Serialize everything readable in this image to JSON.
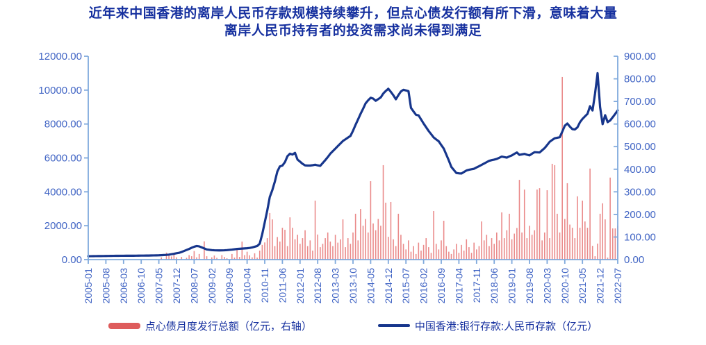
{
  "title": {
    "line1": "近年来中国香港的离岸人民币存款规模持续攀升，但点心债发行额有所下滑，意味着大量",
    "line2": "离岸人民币持有者的投资需求尚未得到满足"
  },
  "colors": {
    "title_text": "#16309F",
    "legend_text": "#16309F",
    "axis_line": "#7FA9DC",
    "axis_label": "#4064C4",
    "bar_fill": "#EA8A8A",
    "line_stroke": "#17368C",
    "legend_bar_swatch": "#DE5C5C",
    "legend_line_swatch": "#17368C"
  },
  "legend": {
    "items": [
      {
        "label": "点心债月度发行总额（亿元，右轴）",
        "swatch": "bar"
      },
      {
        "label": "中国香港:银行存款:人民币存款（亿元）",
        "swatch": "line"
      }
    ]
  },
  "chart_data": {
    "type": "bar+line combo, dual axis",
    "x_start": "2005-01",
    "x_end": "2022-07",
    "x_frequency": "monthly",
    "x_tick_labels": [
      "2005-01",
      "2005-08",
      "2006-03",
      "2006-10",
      "2007-05",
      "2007-12",
      "2008-07",
      "2009-02",
      "2009-09",
      "2010-04",
      "2010-11",
      "2011-06",
      "2012-01",
      "2012-08",
      "2013-03",
      "2013-10",
      "2014-05",
      "2014-12",
      "2015-07",
      "2016-02",
      "2016-09",
      "2017-04",
      "2017-11",
      "2018-06",
      "2019-01",
      "2019-08",
      "2020-03",
      "2020-10",
      "2021-05",
      "2021-12",
      "2022-07"
    ],
    "x_tick_every_n_months": 7,
    "left_axis": {
      "min": 0,
      "max": 12000,
      "step": 2000,
      "tick_labels": [
        "0.00",
        "2000.00",
        "4000.00",
        "6000.00",
        "8000.00",
        "10000.00",
        "12000.00"
      ]
    },
    "right_axis": {
      "min": 0,
      "max": 900,
      "step": 100,
      "tick_labels": [
        "0.00",
        "100.00",
        "200.00",
        "300.00",
        "400.00",
        "500.00",
        "600.00",
        "700.00",
        "800.00",
        "900.00"
      ]
    },
    "grid": false,
    "legend_position": "bottom",
    "series": [
      {
        "name": "点心债月度发行总额（亿元，右轴）",
        "type": "bar",
        "axis": "right",
        "values": [
          0,
          0,
          0,
          0,
          0,
          0,
          0,
          0,
          0,
          0,
          0,
          0,
          0,
          0,
          0,
          0,
          0,
          0,
          0,
          0,
          0,
          0,
          0,
          0,
          0,
          0,
          0,
          0,
          0,
          10,
          0,
          31,
          18,
          14,
          26,
          10,
          0,
          12,
          0,
          8,
          20,
          15,
          38,
          10,
          25,
          0,
          81,
          15,
          0,
          10,
          18,
          8,
          0,
          20,
          12,
          6,
          0,
          25,
          9,
          50,
          12,
          80,
          20,
          35,
          19,
          10,
          28,
          9,
          40,
          65,
          76,
          95,
          206,
          178,
          60,
          100,
          80,
          141,
          132,
          60,
          187,
          141,
          90,
          110,
          70,
          95,
          130,
          60,
          85,
          40,
          261,
          111,
          55,
          70,
          95,
          120,
          80,
          60,
          110,
          75,
          90,
          178,
          55,
          95,
          70,
          120,
          203,
          85,
          224,
          150,
          180,
          120,
          347,
          160,
          130,
          180,
          150,
          418,
          252,
          101,
          255,
          90,
          60,
          203,
          110,
          70,
          45,
          85,
          35,
          60,
          25,
          75,
          40,
          65,
          95,
          55,
          30,
          215,
          70,
          45,
          85,
          172,
          60,
          35,
          25,
          45,
          70,
          30,
          65,
          40,
          90,
          55,
          30,
          75,
          45,
          60,
          169,
          85,
          110,
          60,
          95,
          70,
          120,
          85,
          209,
          95,
          130,
          203,
          90,
          115,
          140,
          353,
          120,
          310,
          95,
          150,
          110,
          130,
          310,
          316,
          85,
          120,
          307,
          95,
          424,
          418,
          203,
          120,
          808,
          180,
          338,
          155,
          141,
          95,
          280,
          141,
          261,
          169,
          141,
          403,
          61,
          15,
          71,
          203,
          249,
          178,
          9,
          363,
          138,
          138,
          150
        ]
      },
      {
        "name": "中国香港:银行存款:人民币存款（亿元）",
        "type": "line",
        "axis": "left",
        "values": [
          200,
          203,
          205,
          207,
          209,
          211,
          213,
          215,
          217,
          220,
          222,
          225,
          226,
          227,
          228,
          229,
          230,
          231,
          232,
          234,
          236,
          237,
          238,
          240,
          242,
          245,
          248,
          252,
          255,
          262,
          270,
          280,
          295,
          320,
          345,
          375,
          400,
          450,
          510,
          570,
          630,
          700,
          760,
          800,
          780,
          720,
          660,
          600,
          580,
          560,
          550,
          545,
          542,
          545,
          550,
          560,
          575,
          590,
          610,
          630,
          640,
          650,
          660,
          670,
          690,
          720,
          760,
          800,
          940,
          1500,
          2200,
          2900,
          3700,
          4100,
          4600,
          5200,
          5500,
          5550,
          5750,
          6100,
          6250,
          6200,
          6300,
          5900,
          5780,
          5650,
          5560,
          5550,
          5550,
          5570,
          5600,
          5560,
          5530,
          5700,
          5870,
          6050,
          6250,
          6400,
          6550,
          6700,
          6850,
          7000,
          7100,
          7200,
          7300,
          7600,
          7950,
          8270,
          8600,
          8900,
          9220,
          9400,
          9550,
          9500,
          9370,
          9470,
          9570,
          9800,
          9950,
          10080,
          9900,
          9700,
          9460,
          9700,
          9920,
          10020,
          9980,
          9940,
          8950,
          8740,
          8540,
          8510,
          8270,
          8030,
          7810,
          7590,
          7400,
          7210,
          7090,
          6980,
          6760,
          6550,
          6200,
          5850,
          5470,
          5290,
          5110,
          5090,
          5080,
          5170,
          5260,
          5300,
          5330,
          5360,
          5440,
          5510,
          5590,
          5670,
          5750,
          5830,
          5870,
          5900,
          5940,
          6010,
          6080,
          6050,
          6020,
          6090,
          6150,
          6240,
          6320,
          6180,
          6210,
          6240,
          6190,
          6150,
          6250,
          6340,
          6330,
          6320,
          6450,
          6580,
          6760,
          6950,
          7060,
          7160,
          7190,
          7220,
          7550,
          7900,
          8030,
          7850,
          7700,
          7680,
          7800,
          8100,
          8300,
          8450,
          8600,
          9050,
          8800,
          9800,
          11000,
          9000,
          7990,
          8520,
          8110,
          8210,
          8400,
          8600,
          8810
        ]
      }
    ]
  }
}
